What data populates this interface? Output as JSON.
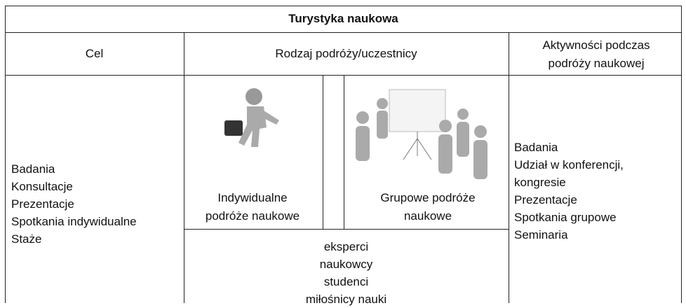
{
  "table": {
    "title": "Turystyka naukowa",
    "headers": [
      "Cel",
      "Rodzaj podróży/uczestnicy",
      "Aktywności podczas podróży naukowej"
    ],
    "goals": [
      "Badania",
      "Konsultacje",
      "Prezentacje",
      "Spotkania indywidualne",
      "Staże"
    ],
    "individual": "Indywidualne podróże naukowe",
    "group": "Grupowe podróże naukowe",
    "participants": [
      "eksperci",
      "naukowcy",
      "studenci",
      "miłośnicy nauki"
    ],
    "activities": [
      "Badania",
      "Udział w konferencji, kongresie",
      "Prezentacje",
      "Spotkania grupowe",
      "Seminaria"
    ]
  }
}
